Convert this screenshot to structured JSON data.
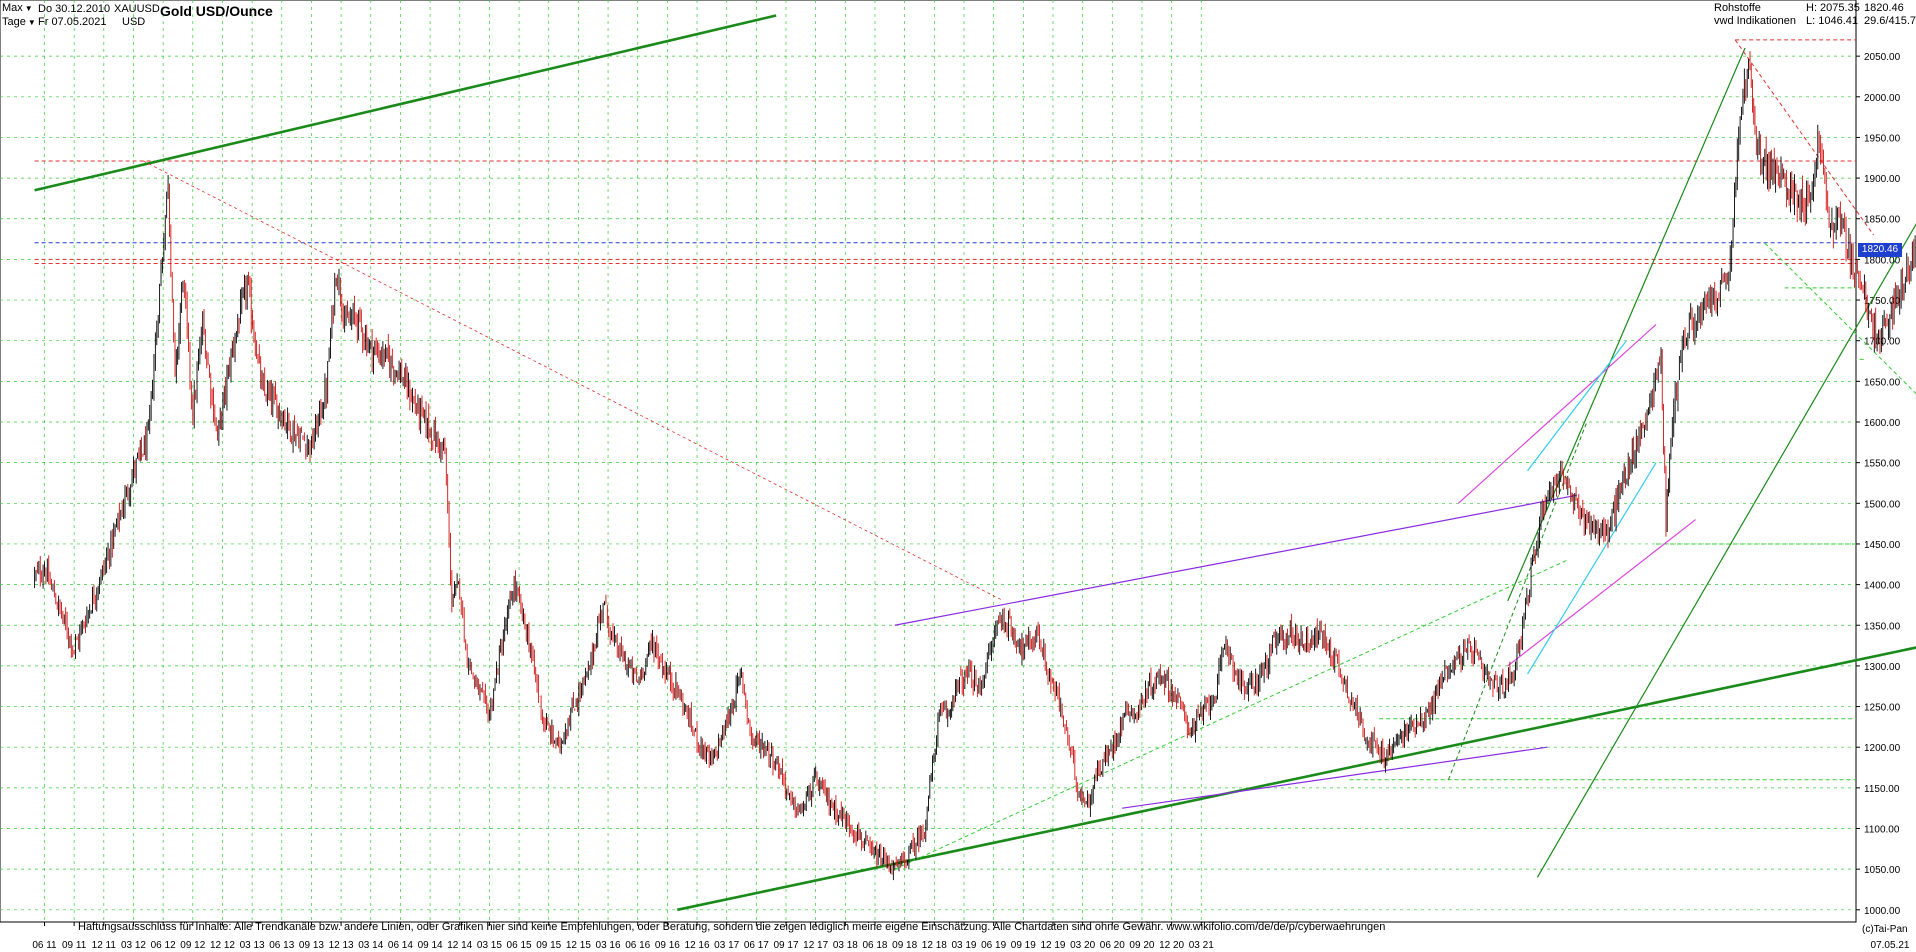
{
  "header": {
    "range_select": "Max",
    "period_select": "Tage",
    "date_from": "Do 30.12.2010",
    "date_to": "Fr 07.05.2021",
    "symbol": "XAUUSD",
    "currency": "USD",
    "title": "Gold USD/Ounce",
    "category": "Rohstoffe",
    "source": "vwd Indikationen",
    "high_label": "H: 2075.35",
    "low_label": "L: 1046.41",
    "last_price": "1820.46",
    "extra": "29.6/415.7"
  },
  "footer": {
    "disclaimer": "Haftungsausschluss für Inhalte: Alle Trendkanäle bzw. andere Linien, oder Grafiken hier sind keine Empfehlungen, oder Beratung, sondern die zeigen lediglich meine eigene Einschätzung. Alle Chartdaten sind ohne Gewähr.  www.wikifolio.com/de/de/p/cyberwaehrungen",
    "copyright": "(c)Tai-Pan",
    "end_date": "07.05.21"
  },
  "colors": {
    "candle_down": "#d01010",
    "candle_up": "#000000",
    "grid": "#33cc33",
    "trend_green": "#1a8a1a",
    "support_red": "#e03030",
    "channel_purple": "#8a2be2",
    "channel_magenta": "#dd44dd",
    "channel_cyan": "#33ccee",
    "price_blue": "#1f3fcf"
  },
  "chart_data": {
    "type": "candlestick",
    "title": "Gold USD/Ounce",
    "instrument": "XAUUSD",
    "interval": "daily",
    "ylim": [
      985,
      2092
    ],
    "y_ticks": [
      1000,
      1050,
      1100,
      1150,
      1200,
      1250,
      1300,
      1350,
      1400,
      1450,
      1500,
      1550,
      1600,
      1650,
      1700,
      1750,
      1800,
      1850,
      1900,
      1950,
      2000,
      2050
    ],
    "x_ticks": [
      "06 11",
      "09 11",
      "12 11",
      "03 12",
      "06 12",
      "09 12",
      "12 12",
      "03 13",
      "06 13",
      "09 13",
      "12 13",
      "03 14",
      "06 14",
      "09 14",
      "12 14",
      "03 15",
      "06 15",
      "09 15",
      "12 15",
      "03 16",
      "06 16",
      "09 16",
      "12 16",
      "03 17",
      "06 17",
      "09 17",
      "12 17",
      "03 18",
      "06 18",
      "09 18",
      "12 18",
      "03 19",
      "06 19",
      "09 19",
      "12 19",
      "03 20",
      "06 20",
      "09 20",
      "12 20",
      "03 21"
    ],
    "x_end_label": "07.05.21",
    "last_value": 1820.46,
    "high": 2075.35,
    "low": 1046.41,
    "price_path": [
      [
        -1.0,
        1410
      ],
      [
        0,
        1420
      ],
      [
        3,
        1320
      ],
      [
        6,
        1420
      ],
      [
        9,
        1540
      ],
      [
        10.5,
        1580
      ],
      [
        11.5,
        1740
      ],
      [
        12.5,
        1900
      ],
      [
        13.2,
        1650
      ],
      [
        14,
        1780
      ],
      [
        15,
        1610
      ],
      [
        16,
        1720
      ],
      [
        17.5,
        1580
      ],
      [
        19,
        1690
      ],
      [
        20.5,
        1770
      ],
      [
        22,
        1640
      ],
      [
        23.5,
        1620
      ],
      [
        25,
        1590
      ],
      [
        27,
        1570
      ],
      [
        28.5,
        1640
      ],
      [
        29.5,
        1790
      ],
      [
        30.5,
        1720
      ],
      [
        31.5,
        1730
      ],
      [
        33,
        1690
      ],
      [
        34.5,
        1680
      ],
      [
        36,
        1660
      ],
      [
        37.5,
        1620
      ],
      [
        39,
        1590
      ],
      [
        40.5,
        1560
      ],
      [
        41.2,
        1380
      ],
      [
        42,
        1400
      ],
      [
        42.6,
        1320
      ],
      [
        43.5,
        1280
      ],
      [
        45,
        1240
      ],
      [
        46,
        1310
      ],
      [
        47.5,
        1400
      ],
      [
        49,
        1330
      ],
      [
        50.5,
        1230
      ],
      [
        52,
        1200
      ],
      [
        53.5,
        1250
      ],
      [
        55,
        1290
      ],
      [
        56.5,
        1380
      ],
      [
        57.5,
        1330
      ],
      [
        58.5,
        1310
      ],
      [
        60,
        1280
      ],
      [
        61.5,
        1330
      ],
      [
        62.5,
        1300
      ],
      [
        64,
        1270
      ],
      [
        66,
        1210
      ],
      [
        67.5,
        1180
      ],
      [
        69,
        1230
      ],
      [
        70.5,
        1290
      ],
      [
        71.5,
        1210
      ],
      [
        73,
        1200
      ],
      [
        74.5,
        1170
      ],
      [
        75.5,
        1130
      ],
      [
        76.5,
        1120
      ],
      [
        78,
        1160
      ],
      [
        79.5,
        1130
      ],
      [
        81,
        1110
      ],
      [
        82.5,
        1090
      ],
      [
        83.5,
        1070
      ],
      [
        85,
        1060
      ],
      [
        86,
        1050
      ],
      [
        87,
        1060
      ],
      [
        88,
        1080
      ],
      [
        89,
        1100
      ],
      [
        90.5,
        1240
      ],
      [
        91.5,
        1240
      ],
      [
        92,
        1270
      ],
      [
        93.5,
        1290
      ],
      [
        94.5,
        1270
      ],
      [
        95.5,
        1310
      ],
      [
        96.5,
        1360
      ],
      [
        97.5,
        1350
      ],
      [
        99,
        1320
      ],
      [
        100.5,
        1340
      ],
      [
        101.5,
        1290
      ],
      [
        102.5,
        1260
      ],
      [
        103.5,
        1210
      ],
      [
        104.5,
        1150
      ],
      [
        105.5,
        1130
      ],
      [
        106.5,
        1170
      ],
      [
        108,
        1200
      ],
      [
        109.5,
        1250
      ],
      [
        110.5,
        1240
      ],
      [
        111.5,
        1270
      ],
      [
        113,
        1290
      ],
      [
        114.5,
        1260
      ],
      [
        116,
        1220
      ],
      [
        117.5,
        1250
      ],
      [
        118.5,
        1270
      ],
      [
        119.5,
        1330
      ],
      [
        120.5,
        1290
      ],
      [
        121.5,
        1270
      ],
      [
        122.5,
        1280
      ],
      [
        123.5,
        1300
      ],
      [
        124.5,
        1330
      ],
      [
        126,
        1340
      ],
      [
        127.5,
        1330
      ],
      [
        129,
        1340
      ],
      [
        130.5,
        1310
      ],
      [
        131.5,
        1280
      ],
      [
        132.5,
        1250
      ],
      [
        133.5,
        1220
      ],
      [
        134.5,
        1200
      ],
      [
        135.5,
        1185
      ],
      [
        137,
        1210
      ],
      [
        138.5,
        1230
      ],
      [
        140,
        1240
      ],
      [
        141.5,
        1290
      ],
      [
        143,
        1310
      ],
      [
        144.5,
        1320
      ],
      [
        145.5,
        1290
      ],
      [
        146.5,
        1275
      ],
      [
        147.5,
        1275
      ],
      [
        148.5,
        1290
      ],
      [
        149.5,
        1350
      ],
      [
        150.5,
        1420
      ],
      [
        151.5,
        1500
      ],
      [
        152.5,
        1520
      ],
      [
        153.5,
        1540
      ],
      [
        154.5,
        1500
      ],
      [
        156,
        1480
      ],
      [
        157,
        1470
      ],
      [
        158,
        1460
      ],
      [
        159.5,
        1520
      ],
      [
        161,
        1570
      ],
      [
        162.5,
        1630
      ],
      [
        163.5,
        1680
      ],
      [
        164,
        1480
      ],
      [
        164.5,
        1580
      ],
      [
        165.5,
        1690
      ],
      [
        166.5,
        1720
      ],
      [
        167.5,
        1730
      ],
      [
        168.5,
        1750
      ],
      [
        169.5,
        1760
      ],
      [
        170.5,
        1790
      ],
      [
        171.5,
        1980
      ],
      [
        172.5,
        2040
      ],
      [
        173,
        1940
      ],
      [
        174,
        1920
      ],
      [
        175.5,
        1900
      ],
      [
        177,
        1880
      ],
      [
        178.5,
        1870
      ],
      [
        179.5,
        1950
      ],
      [
        180.5,
        1840
      ],
      [
        181.5,
        1850
      ],
      [
        182.5,
        1810
      ],
      [
        183.5,
        1780
      ],
      [
        184.5,
        1730
      ],
      [
        185.5,
        1700
      ],
      [
        186.5,
        1720
      ],
      [
        187.5,
        1760
      ],
      [
        188.5,
        1780
      ],
      [
        189.2,
        1820
      ]
    ],
    "horizontal_levels": [
      {
        "type": "resistance",
        "value": 2070,
        "style": "dotted",
        "from_month": 171
      },
      {
        "type": "resistance",
        "value": 1921,
        "style": "dotted",
        "from_month": -1
      },
      {
        "type": "current",
        "value": 1820.46,
        "style": "dotted",
        "from_month": -1
      },
      {
        "type": "resistance",
        "value": 1800,
        "style": "dotted",
        "from_month": -1
      },
      {
        "type": "resistance",
        "value": 1795,
        "style": "dotted",
        "from_month": -1
      },
      {
        "type": "support",
        "value": 1765,
        "style": "dotted",
        "from_month": 176
      },
      {
        "type": "support",
        "value": 1677,
        "style": "dotted",
        "from_month": 184
      },
      {
        "type": "support",
        "value": 1450,
        "style": "dotted",
        "from_month": 163
      },
      {
        "type": "support",
        "value": 1235,
        "style": "dotted",
        "from_month": 135
      },
      {
        "type": "support",
        "value": 1160,
        "style": "dotted",
        "from_month": 132
      }
    ],
    "trend_lines": [
      {
        "label": "long-term channel upper",
        "from": [
          -1,
          1885
        ],
        "to": [
          74,
          2100
        ],
        "weight": "bold"
      },
      {
        "label": "long-term support",
        "from": [
          64,
          1000
        ],
        "to": [
          191,
          1327
        ],
        "weight": "bold"
      },
      {
        "label": "steep uptrend",
        "from": [
          151,
          1040
        ],
        "to": [
          192,
          1900
        ]
      },
      {
        "label": "steep uptrend 2",
        "from": [
          148,
          1380
        ],
        "to": [
          172,
          2060
        ]
      },
      {
        "label": "purple channel top",
        "from": [
          86,
          1350
        ],
        "to": [
          155,
          1510
        ]
      },
      {
        "label": "purple channel bottom",
        "from": [
          109,
          1125
        ],
        "to": [
          152,
          1200
        ]
      }
    ],
    "grid": true,
    "legend": "none"
  }
}
